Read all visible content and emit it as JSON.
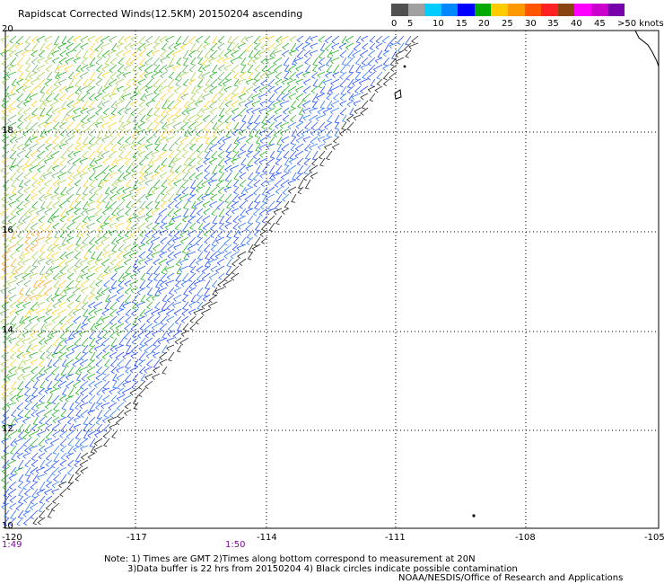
{
  "title": "Rapidscat Corrected Winds(12.5KM) 20150204 ascending",
  "legend": {
    "colors": [
      "#505050",
      "#a0a0a0",
      "#00ccff",
      "#0088ff",
      "#0000ff",
      "#00aa00",
      "#ffcc00",
      "#ff9900",
      "#ff5500",
      "#ff2222",
      "#884411",
      "#ff00ff",
      "#cc00cc",
      "#7700aa"
    ],
    "labels": [
      "0",
      "5",
      "10",
      "15",
      "20",
      "25",
      "30",
      "35",
      "40",
      "45",
      ">50 knots"
    ]
  },
  "map": {
    "x_ticks": [
      "-120",
      "-117",
      "-114",
      "-111",
      "-108",
      "-105"
    ],
    "y_ticks": [
      "20",
      "18",
      "16",
      "14",
      "12",
      "10"
    ],
    "lon_range": [
      -120,
      -105
    ],
    "lat_range": [
      10,
      20
    ]
  },
  "times": [
    "1:49",
    "1:50"
  ],
  "notes": {
    "line1": "Note: 1) Times are GMT 2)Times along bottom correspond to measurement at 20N",
    "line2": "3)Data buffer is 22 hrs from 20150204 4) Black circles indicate possible contamination",
    "line3": "NOAA/NESDIS/Office of Research and Applications"
  }
}
